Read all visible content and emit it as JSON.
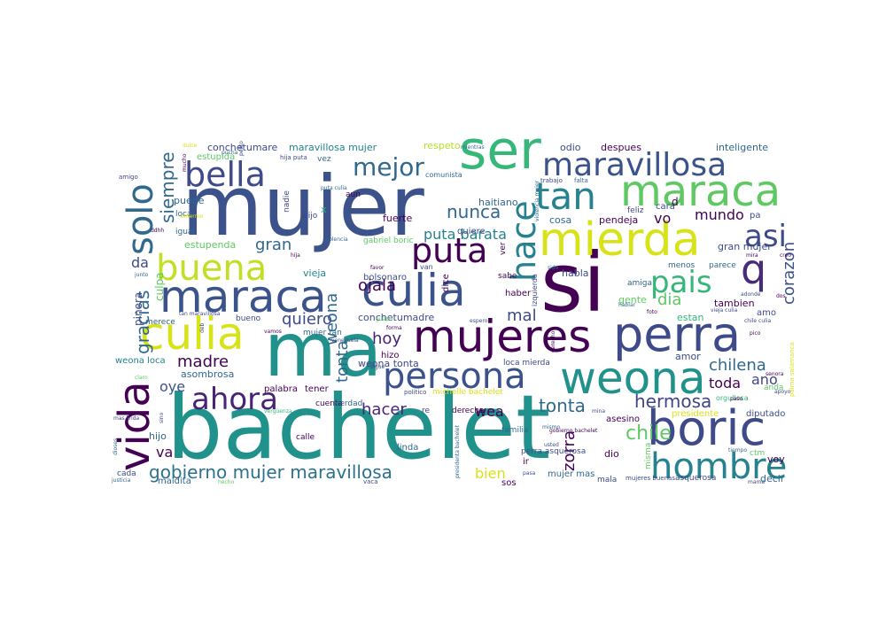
{
  "words": [
    {
      "text": "bachelet",
      "color": "#21918c"
    },
    {
      "text": "mujer",
      "color": "#3b528b"
    },
    {
      "text": "ma",
      "color": "#21918c"
    },
    {
      "text": "si",
      "color": "#440154"
    },
    {
      "text": "ser",
      "color": "#35b779"
    },
    {
      "text": "maraca",
      "color": "#3b528b"
    },
    {
      "text": "culia",
      "color": "#3b528b"
    },
    {
      "text": "mujeres",
      "color": "#440154"
    },
    {
      "text": "perra",
      "color": "#3e4a89"
    },
    {
      "text": "mierda",
      "color": "#d8e219"
    },
    {
      "text": "weona",
      "color": "#21918c"
    },
    {
      "text": "boric",
      "color": "#3e4a89"
    },
    {
      "text": "culia",
      "color": "#d8e219"
    },
    {
      "text": "maraca",
      "color": "#5ec962"
    },
    {
      "text": "vida",
      "color": "#440154"
    },
    {
      "text": "persona",
      "color": "#3b528b"
    },
    {
      "text": "hombre",
      "color": "#26828e"
    },
    {
      "text": "buena",
      "color": "#c2df23"
    },
    {
      "text": "bella",
      "color": "#3e4a89"
    },
    {
      "text": "solo",
      "color": "#31688e"
    },
    {
      "text": "puta",
      "color": "#440154"
    },
    {
      "text": "tan",
      "color": "#26828e"
    },
    {
      "text": "maravillosa",
      "color": "#3b528b"
    },
    {
      "text": "ahora",
      "color": "#482475"
    },
    {
      "text": "hace",
      "color": "#26828e"
    },
    {
      "text": "q",
      "color": "#472c7a"
    },
    {
      "text": "pais",
      "color": "#35b779"
    },
    {
      "text": "asi",
      "color": "#3e4a89"
    },
    {
      "text": "mejor",
      "color": "#31688e"
    },
    {
      "text": "gobierno mujer maravillosa",
      "color": "#2c728e"
    },
    {
      "text": "hermosa",
      "color": "#414487"
    },
    {
      "text": "chile",
      "color": "#5ec962"
    },
    {
      "text": "tonta",
      "color": "#31688e"
    },
    {
      "text": "siempre",
      "color": "#31688e"
    },
    {
      "text": "gracias",
      "color": "#31688e"
    },
    {
      "text": "nunca",
      "color": "#31688e"
    },
    {
      "text": "puta barata",
      "color": "#26828e"
    },
    {
      "text": "corazon",
      "color": "#3b528b"
    },
    {
      "text": "zorra",
      "color": "#440154"
    },
    {
      "text": "chilena",
      "color": "#31688e"
    },
    {
      "text": "madre",
      "color": "#440154"
    },
    {
      "text": "hacer",
      "color": "#482475"
    },
    {
      "text": "quiero",
      "color": "#3e4a89"
    },
    {
      "text": "ojala",
      "color": "#440154"
    },
    {
      "text": "gran",
      "color": "#31688e"
    },
    {
      "text": "dia",
      "color": "#5ec962"
    },
    {
      "text": "hoy",
      "color": "#482475"
    },
    {
      "text": "mal",
      "color": "#3e4a89"
    },
    {
      "text": "tonta",
      "color": "#31688e"
    },
    {
      "text": "weona",
      "color": "#31688e"
    },
    {
      "text": "mundo",
      "color": "#440154"
    },
    {
      "text": "vo",
      "color": "#440154"
    },
    {
      "text": "ano",
      "color": "#414487"
    },
    {
      "text": "toda",
      "color": "#440154"
    },
    {
      "text": "wea",
      "color": "#440154"
    },
    {
      "text": "va",
      "color": "#440154"
    },
    {
      "text": "oye",
      "color": "#3b528b"
    },
    {
      "text": "da",
      "color": "#3e4a89"
    },
    {
      "text": "bien",
      "color": "#d8e219"
    },
    {
      "text": "conchetumare",
      "color": "#3e4a89"
    },
    {
      "text": "maravillosa mujer",
      "color": "#26828e"
    },
    {
      "text": "respeto",
      "color": "#b5de2b"
    },
    {
      "text": "odio",
      "color": "#3e4a89"
    },
    {
      "text": "despues",
      "color": "#440154"
    },
    {
      "text": "inteligente",
      "color": "#31688e"
    },
    {
      "text": "estupenda",
      "color": "#5ec962"
    },
    {
      "text": "conchetumadre",
      "color": "#3e4a89"
    },
    {
      "text": "weona loca",
      "color": "#26828e"
    },
    {
      "text": "weona tonta",
      "color": "#3e4a89"
    },
    {
      "text": "asombrosa",
      "color": "#31688e"
    },
    {
      "text": "michelle bachelet",
      "color": "#d8e219"
    },
    {
      "text": "amor",
      "color": "#3e4a89"
    },
    {
      "text": "pinera",
      "color": "#3e4a89"
    },
    {
      "text": "culpa",
      "color": "#5ec962"
    },
    {
      "text": "cosa",
      "color": "#31688e"
    },
    {
      "text": "pendeja",
      "color": "#440154"
    },
    {
      "text": "cara",
      "color": "#3e4a89"
    },
    {
      "text": "feliz",
      "color": "#3e4a89"
    },
    {
      "text": "haitiano",
      "color": "#31688e"
    },
    {
      "text": "quiere",
      "color": "#3e4a89"
    },
    {
      "text": "hija puta",
      "color": "#3e4a89"
    },
    {
      "text": "estupida",
      "color": "#5ec962"
    },
    {
      "text": "amigo",
      "color": "#414487"
    },
    {
      "text": "puede",
      "color": "#31688e"
    },
    {
      "text": "loca",
      "color": "#31688e"
    },
    {
      "text": "igual",
      "color": "#31688e"
    },
    {
      "text": "nadie",
      "color": "#3e4a89"
    },
    {
      "text": "dijo",
      "color": "#3e4a89"
    },
    {
      "text": "fuerte",
      "color": "#440154"
    },
    {
      "text": "gabriel boric",
      "color": "#5ec962"
    },
    {
      "text": "vieja",
      "color": "#26828e"
    },
    {
      "text": "bolsonaro",
      "color": "#3e4a89"
    },
    {
      "text": "habla",
      "color": "#3e4a89"
    },
    {
      "text": "gente",
      "color": "#5ec962"
    },
    {
      "text": "amiga",
      "color": "#31688e"
    },
    {
      "text": "menos",
      "color": "#31688e"
    },
    {
      "text": "parece",
      "color": "#31688e"
    },
    {
      "text": "gran mujer",
      "color": "#3e4a89"
    },
    {
      "text": "tambien",
      "color": "#440154"
    },
    {
      "text": "estan",
      "color": "#35b779"
    },
    {
      "text": "bueno",
      "color": "#3e4a89"
    },
    {
      "text": "mujer tan",
      "color": "#31688e"
    },
    {
      "text": "hizo",
      "color": "#440154"
    },
    {
      "text": "loca mierda",
      "color": "#3e4a89"
    },
    {
      "text": "palabra",
      "color": "#440154"
    },
    {
      "text": "tener",
      "color": "#440154"
    },
    {
      "text": "cuenta",
      "color": "#440154"
    },
    {
      "text": "verdad",
      "color": "#31688e"
    },
    {
      "text": "politico",
      "color": "#3e4a89"
    },
    {
      "text": "derecha",
      "color": "#440154"
    },
    {
      "text": "asesino",
      "color": "#440154"
    },
    {
      "text": "presidente",
      "color": "#d8e219"
    },
    {
      "text": "diputado",
      "color": "#3e4a89"
    },
    {
      "text": "familia",
      "color": "#31688e"
    },
    {
      "text": "calle",
      "color": "#440154"
    },
    {
      "text": "linda",
      "color": "#31688e"
    },
    {
      "text": "dio",
      "color": "#440154"
    },
    {
      "text": "ir",
      "color": "#440154"
    },
    {
      "text": "sos",
      "color": "#440154"
    },
    {
      "text": "mujer mas",
      "color": "#31688e"
    },
    {
      "text": "misma",
      "color": "#5ec962"
    },
    {
      "text": "mala",
      "color": "#3e4a89"
    },
    {
      "text": "mujeres buenas",
      "color": "#3e4a89"
    },
    {
      "text": "asquerosa",
      "color": "#3e4a89"
    },
    {
      "text": "decir",
      "color": "#31688e"
    },
    {
      "text": "voy",
      "color": "#440154"
    },
    {
      "text": "ctm",
      "color": "#5ec962"
    },
    {
      "text": "cada",
      "color": "#3e4a89"
    },
    {
      "text": "maldita",
      "color": "#31688e"
    },
    {
      "text": "hijo",
      "color": "#31688e"
    },
    {
      "text": "perra asquerosa",
      "color": "#3e4a89"
    },
    {
      "text": "orgullosa",
      "color": "#35b779"
    },
    {
      "text": "anda",
      "color": "#5ec962"
    },
    {
      "text": "merece",
      "color": "#31688e"
    },
    {
      "text": "amo",
      "color": "#3e4a89"
    },
    {
      "text": "vez",
      "color": "#31688e"
    },
    {
      "text": "comunista",
      "color": "#31688e"
    },
    {
      "text": "trabajo",
      "color": "#3e4a89"
    },
    {
      "text": "falta",
      "color": "#31688e"
    },
    {
      "text": "aun",
      "color": "#440154"
    },
    {
      "text": "x",
      "color": "#35b779"
    },
    {
      "text": "d",
      "color": "#440154"
    },
    {
      "text": "pa",
      "color": "#3e4a89"
    },
    {
      "text": "sabe",
      "color": "#440154"
    },
    {
      "text": "dice",
      "color": "#440154"
    },
    {
      "text": "ver",
      "color": "#440154"
    },
    {
      "text": "van",
      "color": "#3e4a89"
    },
    {
      "text": "haber",
      "color": "#440154"
    },
    {
      "text": "izquierda",
      "color": "#3e4a89"
    },
    {
      "text": "re",
      "color": "#3e4a89"
    },
    {
      "text": "mina",
      "color": "#3e4a89"
    },
    {
      "text": "mismo",
      "color": "#31688e"
    },
    {
      "text": "usted",
      "color": "#3e4a89"
    },
    {
      "text": "gobierno bachelet",
      "color": "#440154"
    },
    {
      "text": "presidenta bachelet",
      "color": "#31688e"
    },
    {
      "text": "vaca",
      "color": "#3e4a89"
    },
    {
      "text": "pasa",
      "color": "#3e4a89"
    },
    {
      "text": "justicia",
      "color": "#31688e"
    },
    {
      "text": "hecho",
      "color": "#5ec962"
    },
    {
      "text": "mas linda",
      "color": "#3e4a89"
    },
    {
      "text": "vamos",
      "color": "#440154"
    },
    {
      "text": "venezuela",
      "color": "#3e4a89"
    },
    {
      "text": "espero",
      "color": "#3e4a89"
    },
    {
      "text": "forma",
      "color": "#440154"
    },
    {
      "text": "foto",
      "color": "#440154"
    },
    {
      "text": "hablar",
      "color": "#31688e"
    },
    {
      "text": "vieja culia",
      "color": "#3e4a89"
    },
    {
      "text": "pico",
      "color": "#440154"
    },
    {
      "text": "senora",
      "color": "#440154"
    },
    {
      "text": "apoyo",
      "color": "#3e4a89"
    },
    {
      "text": "paso",
      "color": "#440154"
    },
    {
      "text": "tiempo",
      "color": "#31688e"
    },
    {
      "text": "mama",
      "color": "#3e4a89"
    },
    {
      "text": "adonde",
      "color": "#3e4a89"
    },
    {
      "text": "dos",
      "color": "#440154"
    },
    {
      "text": "mira",
      "color": "#440154"
    },
    {
      "text": "creo",
      "color": "#440154"
    },
    {
      "text": "sido",
      "color": "#31688e"
    },
    {
      "text": "favor",
      "color": "#440154"
    },
    {
      "text": "hija",
      "color": "#440154"
    },
    {
      "text": "junto",
      "color": "#31688e"
    },
    {
      "text": "tan maravillosa",
      "color": "#3e4a89"
    },
    {
      "text": "violencia",
      "color": "#31688e"
    },
    {
      "text": "enfermo",
      "color": "#d8e219"
    },
    {
      "text": "dulce",
      "color": "#d8e219"
    },
    {
      "text": "mucho",
      "color": "#440154"
    },
    {
      "text": "ddhh",
      "color": "#440154"
    },
    {
      "text": "deb",
      "color": "#3e4a89"
    },
    {
      "text": "sigue",
      "color": "#3e4a89"
    },
    {
      "text": "claro",
      "color": "#5ec962"
    },
    {
      "text": "guapo",
      "color": "#5ec962"
    },
    {
      "text": "sino",
      "color": "#3e4a89"
    },
    {
      "text": "vergüenza",
      "color": "#35b779"
    },
    {
      "text": "derecho",
      "color": "#440154"
    },
    {
      "text": "palma salamanca",
      "color": "#d8e219"
    },
    {
      "text": "mientras",
      "color": "#31688e"
    },
    {
      "text": "dioses",
      "color": "#31688e"
    },
    {
      "text": "violencia mujer",
      "color": "#31688e"
    },
    {
      "text": "pelito",
      "color": "#3e4a89"
    },
    {
      "text": "puta culia",
      "color": "#31688e"
    },
    {
      "text": "chile culia",
      "color": "#3e4a89"
    },
    {
      "text": "pucha",
      "color": "#31688e"
    }
  ]
}
